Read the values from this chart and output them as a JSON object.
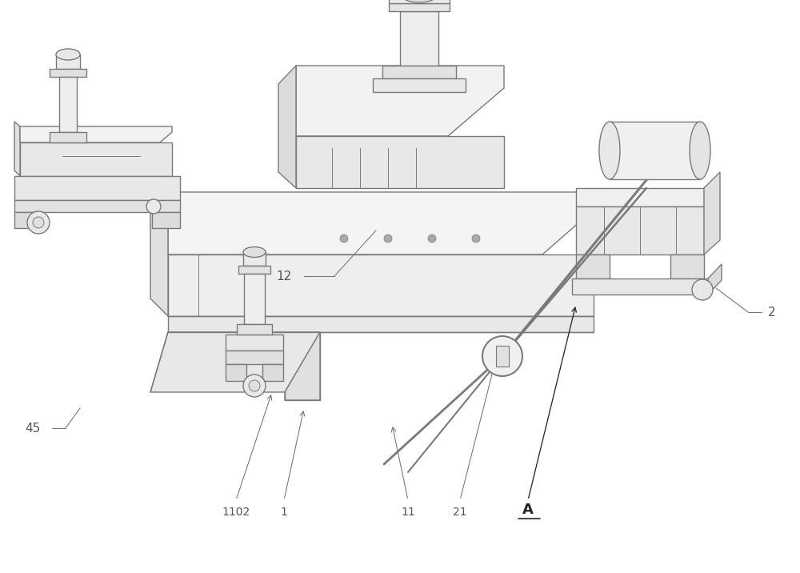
{
  "bg_color": "#ffffff",
  "lc": "#7a7a7a",
  "lc_dark": "#404040",
  "lw": 1.0,
  "lw2": 1.5,
  "figsize": [
    10.0,
    7.16
  ],
  "dpi": 100
}
